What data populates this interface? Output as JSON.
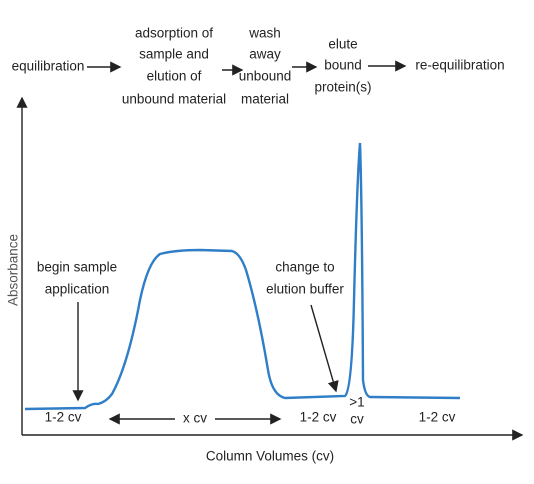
{
  "process_steps": [
    {
      "lines": [
        "equilibration"
      ]
    },
    {
      "lines": [
        "adsorption of",
        "sample and",
        "elution of",
        "unbound material"
      ]
    },
    {
      "lines": [
        "wash",
        "away",
        "unbound",
        "material"
      ]
    },
    {
      "lines": [
        "elute",
        "bound",
        "protein(s)"
      ]
    },
    {
      "lines": [
        "re-equilibration"
      ]
    }
  ],
  "axes": {
    "y_label": "Absorbance",
    "x_label": "Column Volumes (cv)"
  },
  "annotations": [
    {
      "lines": [
        "begin sample",
        "application"
      ]
    },
    {
      "lines": [
        "change to",
        "elution buffer"
      ]
    }
  ],
  "durations": [
    {
      "lines": [
        "1-2 cv"
      ]
    },
    {
      "lines": [
        "x cv"
      ]
    },
    {
      "lines": [
        "1-2 cv"
      ]
    },
    {
      "lines": [
        ">1",
        "cv"
      ]
    },
    {
      "lines": [
        "1-2 cv"
      ]
    }
  ]
}
